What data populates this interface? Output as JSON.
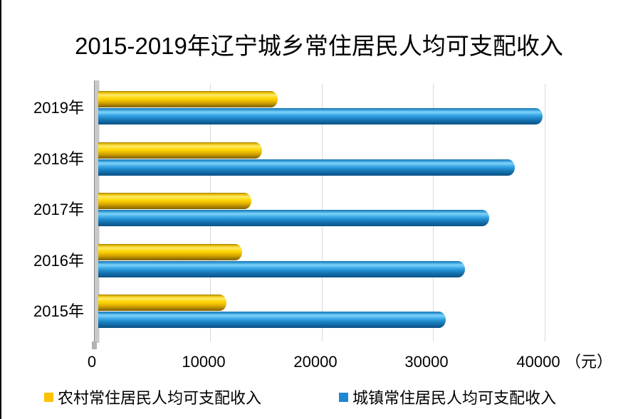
{
  "chart_data": {
    "type": "bar",
    "orientation": "horizontal",
    "title": "2015-2019年辽宁城乡常住居民人均可支配收入",
    "categories": [
      "2019年",
      "2018年",
      "2017年",
      "2016年",
      "2015年"
    ],
    "series": [
      {
        "name": "农村常住居民人均可支配收入",
        "color": "#FFC000",
        "values": [
          16108,
          14656,
          13747,
          12881,
          11490
        ]
      },
      {
        "name": "城镇常住居民人均可支配收入",
        "color": "#1F87D2",
        "values": [
          39777,
          37342,
          34993,
          32876,
          31126
        ]
      }
    ],
    "xlim": [
      0,
      40000
    ],
    "x_ticks": [
      0,
      10000,
      20000,
      30000,
      40000
    ],
    "x_tick_labels": [
      "0",
      "10000",
      "20000",
      "30000",
      "40000"
    ],
    "unit_label": "（元）",
    "legend_position": "bottom",
    "grid": "vertical",
    "style": "3d-cylinder"
  },
  "legend": {
    "rural": "农村常住居民人均可支配收入",
    "urban": "城镇常住居民人均可支配收入"
  }
}
